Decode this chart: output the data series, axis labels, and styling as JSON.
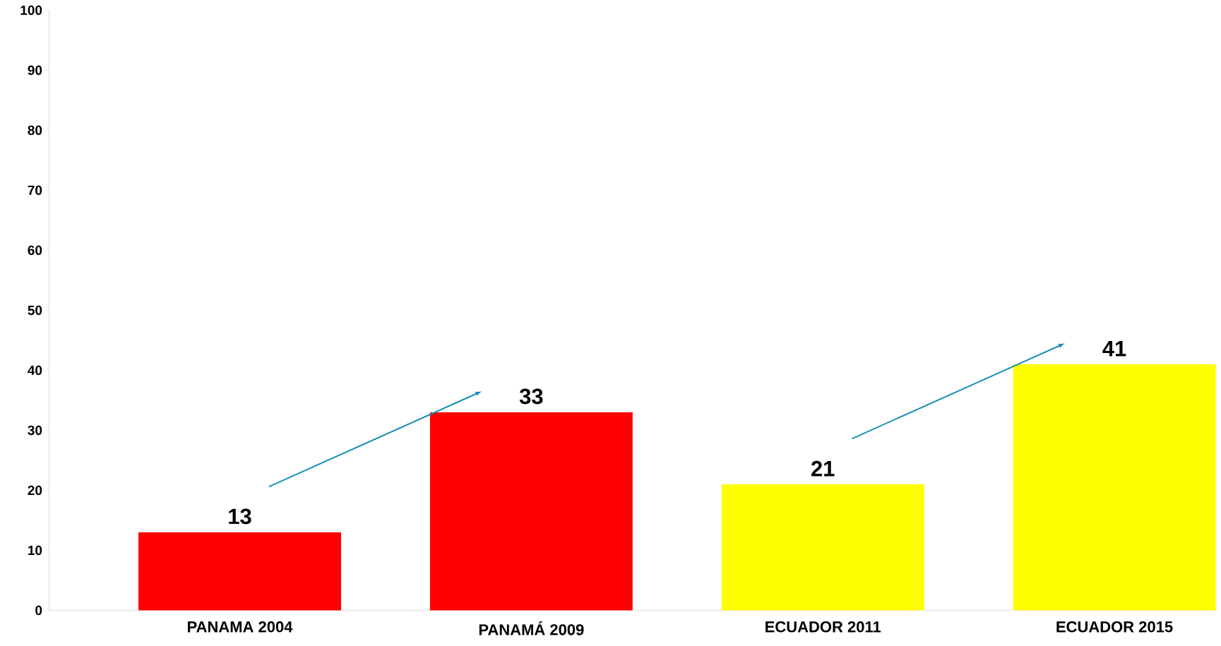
{
  "chart_data": {
    "type": "bar",
    "categories": [
      "PANAMA 2004",
      "PANAMÁ 2009",
      "ECUADOR 2011",
      "ECUADOR 2015"
    ],
    "values": [
      13,
      33,
      21,
      41
    ],
    "colors": [
      "#ff0000",
      "#ff0000",
      "#ffff00",
      "#ffff00"
    ],
    "ylim": [
      0,
      100
    ],
    "yticks": [
      0,
      10,
      20,
      30,
      40,
      50,
      60,
      70,
      80,
      90,
      100
    ],
    "data_labels": true,
    "grid": false
  }
}
